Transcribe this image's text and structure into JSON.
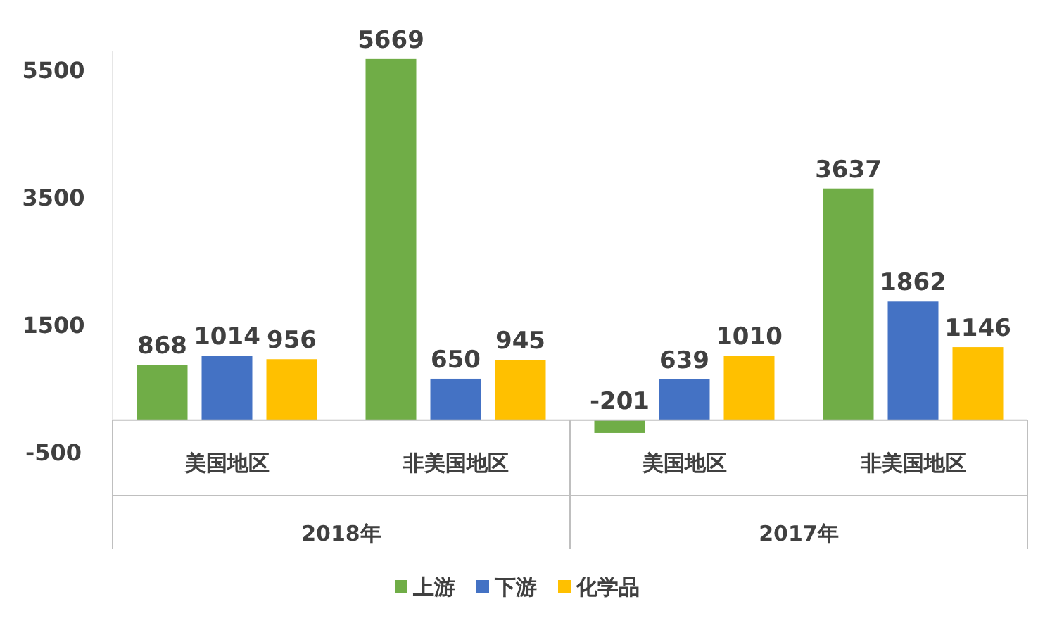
{
  "chart_data": {
    "type": "bar",
    "categories": [
      "美国地区",
      "非美国地区",
      "美国地区",
      "非美国地区"
    ],
    "series": [
      {
        "name": "上游",
        "color": "#70ad47",
        "values": [
          868,
          5669,
          -201,
          3637
        ]
      },
      {
        "name": "下游",
        "color": "#4472c4",
        "values": [
          1014,
          650,
          639,
          1862
        ]
      },
      {
        "name": "化学品",
        "color": "#ffc000",
        "values": [
          956,
          945,
          1010,
          1146
        ]
      }
    ],
    "ylim": [
      -500,
      5800
    ],
    "yticks": [
      -500,
      1500,
      3500,
      5500
    ],
    "data_labels": true,
    "legend": "bottom",
    "grid": false,
    "annotations": [
      "2018年",
      "2017年"
    ]
  }
}
